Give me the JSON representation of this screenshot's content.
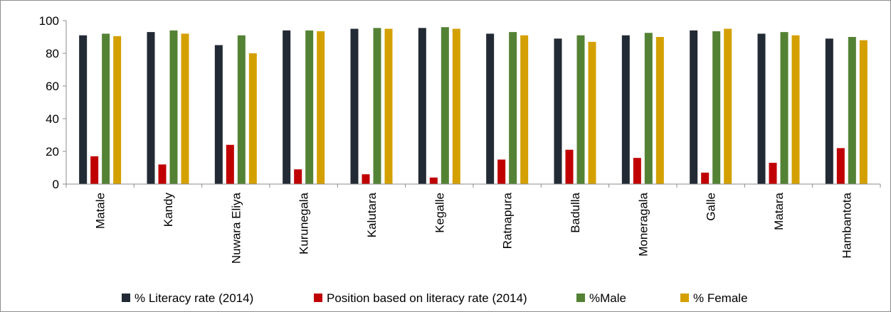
{
  "chart_data": {
    "type": "bar",
    "title": "",
    "xlabel": "",
    "ylabel": "",
    "ylim": [
      0,
      100
    ],
    "yticks": [
      0,
      20,
      40,
      60,
      80,
      100
    ],
    "grid": false,
    "legend_position": "bottom",
    "categories": [
      "Matale",
      "Kandy",
      "Nuwara Eliya",
      "Kurunegala",
      "Kalutara",
      "Kegalle",
      "Ratnapura",
      "Badulla",
      "Moneragala",
      "Galle",
      "Matara",
      "Hambantota"
    ],
    "series": [
      {
        "name": "% Literacy rate (2014)",
        "color": "#222a35",
        "values": [
          91,
          93,
          85,
          94,
          95,
          95.5,
          92,
          89,
          91,
          94,
          92,
          89
        ]
      },
      {
        "name": "Position based on literacy rate (2014)",
        "color": "#c00000",
        "values": [
          17,
          12,
          24,
          9,
          6,
          4,
          15,
          21,
          16,
          7,
          13,
          22
        ]
      },
      {
        "name": "%Male",
        "color": "#548235",
        "values": [
          92,
          94,
          91,
          94,
          95.5,
          96,
          93,
          91,
          92.5,
          93.5,
          93,
          90
        ]
      },
      {
        "name": "% Female",
        "color": "#d4a000",
        "values": [
          90.5,
          92,
          80,
          93.5,
          95,
          95,
          91,
          87,
          90,
          95,
          91,
          88
        ]
      }
    ]
  }
}
